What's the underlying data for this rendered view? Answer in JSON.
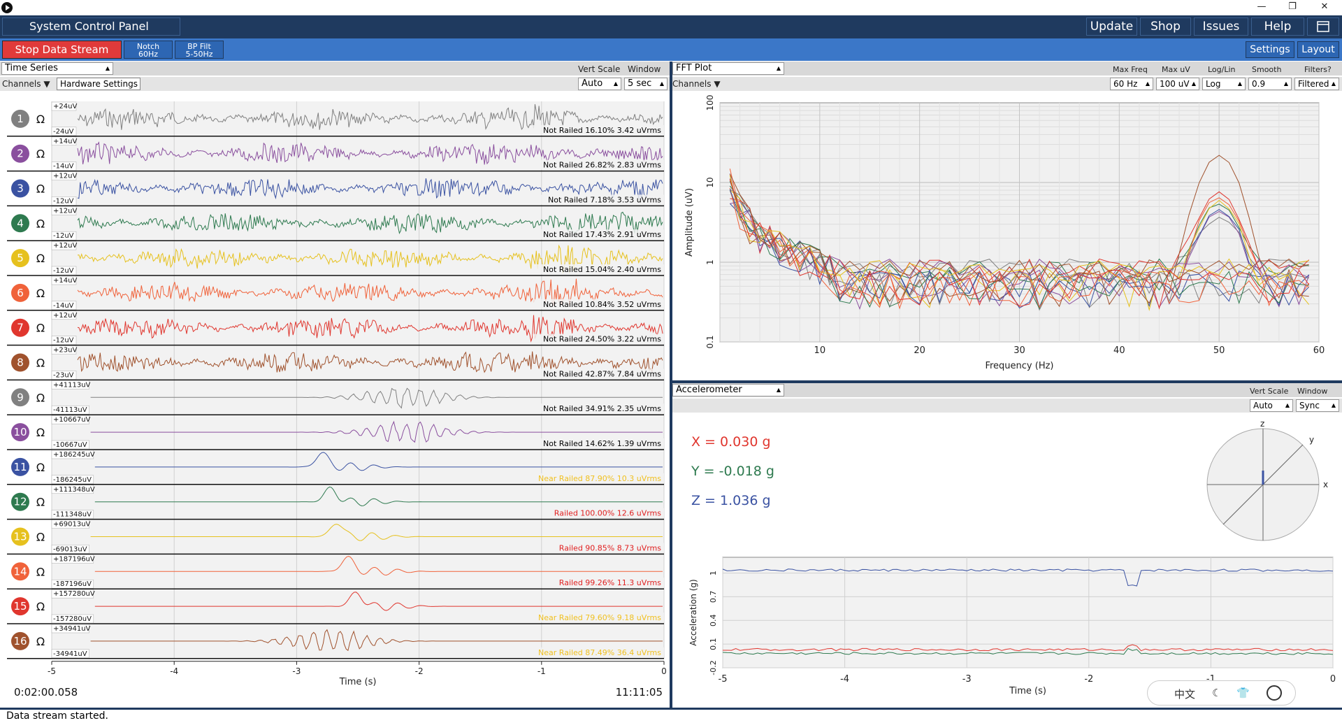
{
  "window": {
    "minimize": "—",
    "restore": "❐",
    "close": "✕"
  },
  "topbar": {
    "title": "System Control Panel",
    "buttons": [
      "Update",
      "Shop",
      "Issues",
      "Help"
    ]
  },
  "toolbar": {
    "stop": "Stop Data Stream",
    "notch": [
      "Notch",
      "60Hz"
    ],
    "bp": [
      "BP Filt",
      "5-50Hz"
    ],
    "settings": "Settings",
    "layout": "Layout"
  },
  "time_series": {
    "title": "Time Series",
    "vert_scale_label": "Vert Scale",
    "window_label": "Window",
    "vert_scale": "Auto",
    "window": "5 sec",
    "channels_label": "Channels ▼",
    "hardware_settings": "Hardware Settings",
    "omega": "Ω",
    "channels": [
      {
        "n": "1",
        "color": "#808080",
        "top": "+24uV",
        "bot": "-24uV",
        "status": "Not Railed 16.10% 3.42 uVrms",
        "status_color": "#000000",
        "kind": "eeg"
      },
      {
        "n": "2",
        "color": "#8a4f9e",
        "top": "+14uV",
        "bot": "-14uV",
        "status": "Not Railed 26.82% 2.83 uVrms",
        "status_color": "#000000",
        "kind": "eeg"
      },
      {
        "n": "3",
        "color": "#3a52a2",
        "top": "+12uV",
        "bot": "-12uV",
        "status": "Not Railed 7.18% 3.53 uVrms",
        "status_color": "#000000",
        "kind": "eeg"
      },
      {
        "n": "4",
        "color": "#2e7a4f",
        "top": "+12uV",
        "bot": "-12uV",
        "status": "Not Railed 17.43% 2.91 uVrms",
        "status_color": "#000000",
        "kind": "eeg"
      },
      {
        "n": "5",
        "color": "#e6c11e",
        "top": "+12uV",
        "bot": "-12uV",
        "status": "Not Railed 15.04% 2.40 uVrms",
        "status_color": "#000000",
        "kind": "eeg"
      },
      {
        "n": "6",
        "color": "#f0623a",
        "top": "+14uV",
        "bot": "-14uV",
        "status": "Not Railed 10.84% 3.52 uVrms",
        "status_color": "#000000",
        "kind": "eeg"
      },
      {
        "n": "7",
        "color": "#e0362e",
        "top": "+12uV",
        "bot": "-12uV",
        "status": "Not Railed 24.50% 3.22 uVrms",
        "status_color": "#000000",
        "kind": "eeg"
      },
      {
        "n": "8",
        "color": "#a0522d",
        "top": "+23uV",
        "bot": "-23uV",
        "status": "Not Railed 42.87% 7.84 uVrms",
        "status_color": "#000000",
        "kind": "eeg"
      },
      {
        "n": "9",
        "color": "#808080",
        "top": "+41113uV",
        "bot": "-41113uV",
        "status": "Not Railed 34.91% 2.35 uVrms",
        "status_color": "#000000",
        "kind": "burst"
      },
      {
        "n": "10",
        "color": "#8a4f9e",
        "top": "+10667uV",
        "bot": "-10667uV",
        "status": "Not Railed 14.62% 1.39 uVrms",
        "status_color": "#000000",
        "kind": "burst"
      },
      {
        "n": "11",
        "color": "#3a52a2",
        "top": "+186245uV",
        "bot": "-186245uV",
        "status": "Near Railed 87.90% 10.3 uVrms",
        "status_color": "#f0c020",
        "kind": "spike"
      },
      {
        "n": "12",
        "color": "#2e7a4f",
        "top": "+111348uV",
        "bot": "-111348uV",
        "status": "Railed 100.00% 12.6 uVrms",
        "status_color": "#e02020",
        "kind": "spike"
      },
      {
        "n": "13",
        "color": "#e6c11e",
        "top": "+69013uV",
        "bot": "-69013uV",
        "status": "Railed 90.85% 8.73 uVrms",
        "status_color": "#e02020",
        "kind": "spike"
      },
      {
        "n": "14",
        "color": "#f0623a",
        "top": "+187196uV",
        "bot": "-187196uV",
        "status": "Railed 99.26% 11.3 uVrms",
        "status_color": "#e02020",
        "kind": "spike"
      },
      {
        "n": "15",
        "color": "#e0362e",
        "top": "+157280uV",
        "bot": "-157280uV",
        "status": "Near Railed 79.60% 9.18 uVrms",
        "status_color": "#f0c020",
        "kind": "spike"
      },
      {
        "n": "16",
        "color": "#a0522d",
        "top": "+34941uV",
        "bot": "-34941uV",
        "status": "Near Railed 87.49% 36.4 uVrms",
        "status_color": "#f0c020",
        "kind": "burst"
      }
    ],
    "x_ticks": [
      "-5",
      "-4",
      "-3",
      "-2",
      "-1",
      "0"
    ],
    "xlabel": "Time (s)",
    "elapsed": "0:02:00.058",
    "clock": "11:11:05"
  },
  "fft": {
    "title": "FFT Plot",
    "channels_label": "Channels ▼",
    "controls": [
      {
        "label": "Max Freq",
        "value": "60 Hz"
      },
      {
        "label": "Max uV",
        "value": "100 uV"
      },
      {
        "label": "Log/Lin",
        "value": "Log"
      },
      {
        "label": "Smooth",
        "value": "0.9"
      },
      {
        "label": "Filters?",
        "value": "Filtered"
      }
    ]
  },
  "chart_data": [
    {
      "type": "line",
      "xlabel": "Frequency (Hz)",
      "ylabel": "Amplitude (uV)",
      "x_ticks": [
        "10",
        "20",
        "30",
        "40",
        "50",
        "60"
      ],
      "y_ticks": [
        "0.1",
        "1",
        "10",
        "100"
      ],
      "xlim": [
        0,
        60
      ],
      "ylim": [
        0.1,
        100
      ],
      "yscale": "log",
      "grid": true,
      "peak_hz": 50,
      "series_colors": [
        "#808080",
        "#8a4f9e",
        "#3a52a2",
        "#2e7a4f",
        "#e6c11e",
        "#f0623a",
        "#e0362e",
        "#a0522d"
      ]
    },
    {
      "type": "line",
      "xlabel": "Time (s)",
      "ylabel": "Acceleration (g)",
      "x_ticks": [
        "-5",
        "-4",
        "-3",
        "-2",
        "-1",
        "0"
      ],
      "y_ticks": [
        "-0.2",
        "0.1",
        "0.4",
        "0.7",
        "1"
      ],
      "xlim": [
        -5,
        0
      ],
      "ylim": [
        -0.2,
        1.2
      ],
      "grid": true,
      "series": [
        {
          "axis": "X",
          "value": 0.03,
          "color": "#e0362e"
        },
        {
          "axis": "Y",
          "value": -0.018,
          "color": "#2e7a4f"
        },
        {
          "axis": "Z",
          "value": 1.036,
          "color": "#3a52a2"
        }
      ]
    }
  ],
  "accel": {
    "title": "Accelerometer",
    "vert_scale_label": "Vert Scale",
    "window_label": "Window",
    "vert_scale": "Auto",
    "window": "Sync",
    "x_readout": "X = 0.030 g",
    "y_readout": "Y = -0.018 g",
    "z_readout": "Z = 1.036 g",
    "axis_x": "x",
    "axis_y": "y",
    "axis_z": "z"
  },
  "status": "Data stream started.",
  "ime": {
    "lang": "中文",
    "moon": "☾",
    "shirt": "👕"
  }
}
